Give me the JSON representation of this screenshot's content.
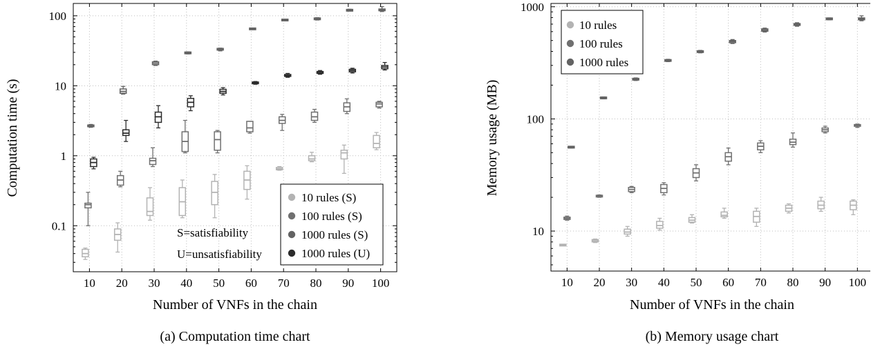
{
  "figure": {
    "left_caption": "(a) Computation time chart",
    "right_caption": "(b) Memory usage chart"
  },
  "colors": {
    "s10": "#b3b3b3",
    "s100": "#707070",
    "s1000": "#636363",
    "u1000": "#2b2b2b"
  },
  "chart_data": [
    {
      "type": "box",
      "title": "",
      "xlabel": "Number of VNFs in the chain",
      "ylabel": "Computation time (s)",
      "yscale": "log",
      "ylim": [
        0.022,
        150
      ],
      "xlim": [
        5,
        105
      ],
      "x_ticks": [
        10,
        20,
        30,
        40,
        50,
        60,
        70,
        80,
        90,
        100
      ],
      "y_ticks": [
        0.1,
        1,
        10,
        100
      ],
      "y_tick_labels": [
        "0.1",
        "1",
        "10",
        "100"
      ],
      "grid": true,
      "legend_position": "bottom-right",
      "annotations": [
        "S=satisfiability",
        "U=unsatisfiability"
      ],
      "series": [
        {
          "name": "10 rules (S)",
          "color_key": "s10",
          "offset": -6,
          "boxes": [
            [
              0.033,
              0.036,
              0.04,
              0.046,
              0.048
            ],
            [
              0.042,
              0.062,
              0.075,
              0.09,
              0.11
            ],
            [
              0.12,
              0.14,
              0.16,
              0.25,
              0.35
            ],
            [
              0.13,
              0.14,
              0.22,
              0.35,
              0.45
            ],
            [
              0.13,
              0.2,
              0.3,
              0.43,
              0.54
            ],
            [
              0.24,
              0.33,
              0.45,
              0.6,
              0.72
            ],
            [
              0.62,
              0.63,
              0.65,
              0.68,
              0.7
            ],
            [
              0.82,
              0.85,
              0.9,
              1.0,
              1.12
            ],
            [
              0.56,
              0.9,
              1.1,
              1.2,
              1.42
            ],
            [
              1.22,
              1.3,
              1.5,
              1.95,
              2.15
            ]
          ]
        },
        {
          "name": "100 rules (S)",
          "color_key": "s100",
          "offset": -2,
          "boxes": [
            [
              0.1,
              0.18,
              0.2,
              0.21,
              0.3
            ],
            [
              0.36,
              0.38,
              0.45,
              0.52,
              0.6
            ],
            [
              0.7,
              0.75,
              0.85,
              0.92,
              1.3
            ],
            [
              1.1,
              1.15,
              1.6,
              2.2,
              3.2
            ],
            [
              1.1,
              1.2,
              1.7,
              2.2,
              2.3
            ],
            [
              2.1,
              2.2,
              2.5,
              3.1,
              3.1
            ],
            [
              2.3,
              2.9,
              3.2,
              3.6,
              3.9
            ],
            [
              3.0,
              3.2,
              3.6,
              4.2,
              4.6
            ],
            [
              4.0,
              4.3,
              5.0,
              5.7,
              6.5
            ],
            [
              4.8,
              5.0,
              5.5,
              5.8,
              6.0
            ]
          ]
        },
        {
          "name": "1000 rules (S)",
          "color_key": "s1000",
          "offset": 2,
          "boxes": [
            [
              2.55,
              2.6,
              2.7,
              2.75,
              2.8
            ],
            [
              7.6,
              7.8,
              8.3,
              9.0,
              9.8
            ],
            [
              19.5,
              20.0,
              21.0,
              22.0,
              22.5
            ],
            [
              28.5,
              29.0,
              29.5,
              30.0,
              30.5
            ],
            [
              31.5,
              32.5,
              33.0,
              34.0,
              34.5
            ],
            [
              64.0,
              64.5,
              65.0,
              65.5,
              66.0
            ],
            [
              85.0,
              86.0,
              87.0,
              88.0,
              89.0
            ],
            [
              87.0,
              89.0,
              90.0,
              92.0,
              94.0
            ],
            [
              117.0,
              118.0,
              120.0,
              122.0,
              124.0
            ],
            [
              115.0,
              118.0,
              121.0,
              125.0,
              135.0
            ]
          ]
        },
        {
          "name": "1000 rules (U)",
          "color_key": "u1000",
          "offset": 6,
          "boxes": [
            [
              0.65,
              0.7,
              0.8,
              0.9,
              0.95
            ],
            [
              1.6,
              1.95,
              2.1,
              2.35,
              3.2
            ],
            [
              2.5,
              3.0,
              3.6,
              4.2,
              5.2
            ],
            [
              4.4,
              5.0,
              5.8,
              6.6,
              7.2
            ],
            [
              7.4,
              7.8,
              8.3,
              8.9,
              9.4
            ],
            [
              10.5,
              10.7,
              11.0,
              11.3,
              11.5
            ],
            [
              13.2,
              13.6,
              14.0,
              14.5,
              15.0
            ],
            [
              14.6,
              15.0,
              15.5,
              16.0,
              16.5
            ],
            [
              15.2,
              15.8,
              16.5,
              17.2,
              17.8
            ],
            [
              16.8,
              17.5,
              18.5,
              19.5,
              21.5
            ]
          ]
        }
      ]
    },
    {
      "type": "box",
      "title": "",
      "xlabel": "Number of VNFs in the chain",
      "ylabel": "Memory usage (MB)",
      "yscale": "log",
      "ylim": [
        4.4,
        1070
      ],
      "xlim": [
        5,
        104
      ],
      "x_ticks": [
        10,
        20,
        30,
        40,
        50,
        60,
        70,
        80,
        90,
        100
      ],
      "y_ticks": [
        10,
        100,
        1000
      ],
      "y_tick_labels": [
        "10",
        "100",
        "1000"
      ],
      "grid": true,
      "legend_position": "top-left",
      "annotations": [],
      "series": [
        {
          "name": "10 rules",
          "color_key": "s10",
          "offset": -6,
          "boxes": [
            [
              7.4,
              7.45,
              7.5,
              7.55,
              7.6
            ],
            [
              7.9,
              8.0,
              8.2,
              8.4,
              8.5
            ],
            [
              9.0,
              9.4,
              9.8,
              10.4,
              11.0
            ],
            [
              10.2,
              10.6,
              11.2,
              12.2,
              13.0
            ],
            [
              11.8,
              12.0,
              12.5,
              13.2,
              14.0
            ],
            [
              13.0,
              13.4,
              13.8,
              14.8,
              16.0
            ],
            [
              11.0,
              12.0,
              13.5,
              15.0,
              16.0
            ],
            [
              14.5,
              15.0,
              16.0,
              17.0,
              17.5
            ],
            [
              15.0,
              15.8,
              17.0,
              18.5,
              20.0
            ],
            [
              14.0,
              15.5,
              17.0,
              18.5,
              19.0
            ]
          ]
        },
        {
          "name": "100 rules",
          "color_key": "s100",
          "offset": 0,
          "boxes": [
            [
              12.5,
              12.7,
              13.0,
              13.3,
              13.6
            ],
            [
              20.0,
              20.2,
              20.5,
              20.8,
              21.0
            ],
            [
              22.0,
              22.5,
              23.5,
              24.5,
              25.0
            ],
            [
              21.0,
              22.0,
              24.0,
              26.0,
              27.0
            ],
            [
              28.0,
              30.0,
              33.0,
              36.0,
              39.0
            ],
            [
              39.0,
              42.0,
              46.0,
              50.0,
              55.0
            ],
            [
              50.0,
              53.0,
              57.0,
              61.0,
              64.0
            ],
            [
              56.0,
              59.0,
              62.0,
              66.0,
              75.0
            ],
            [
              75.0,
              77.0,
              80.0,
              83.0,
              86.0
            ],
            [
              84.0,
              86.0,
              87.5,
              89.0,
              90.0
            ]
          ]
        },
        {
          "name": "1000 rules",
          "color_key": "s1000",
          "offset": 6,
          "boxes": [
            [
              55.0,
              55.5,
              56.0,
              56.5,
              57.0
            ],
            [
              151.0,
              152.0,
              154.0,
              156.0,
              157.0
            ],
            [
              220.0,
              222.0,
              226.0,
              230.0,
              232.0
            ],
            [
              324.0,
              327.0,
              332.0,
              337.0,
              340.0
            ],
            [
              388.0,
              392.0,
              398.0,
              404.0,
              408.0
            ],
            [
              470.0,
              478.0,
              490.0,
              500.0,
              510.0
            ],
            [
              595.0,
              605.0,
              620.0,
              635.0,
              645.0
            ],
            [
              670.0,
              682.0,
              695.0,
              708.0,
              720.0
            ],
            [
              765.0,
              772.0,
              780.0,
              788.0,
              795.0
            ],
            [
              750.0,
              765.0,
              780.0,
              795.0,
              830.0
            ]
          ]
        }
      ]
    }
  ]
}
